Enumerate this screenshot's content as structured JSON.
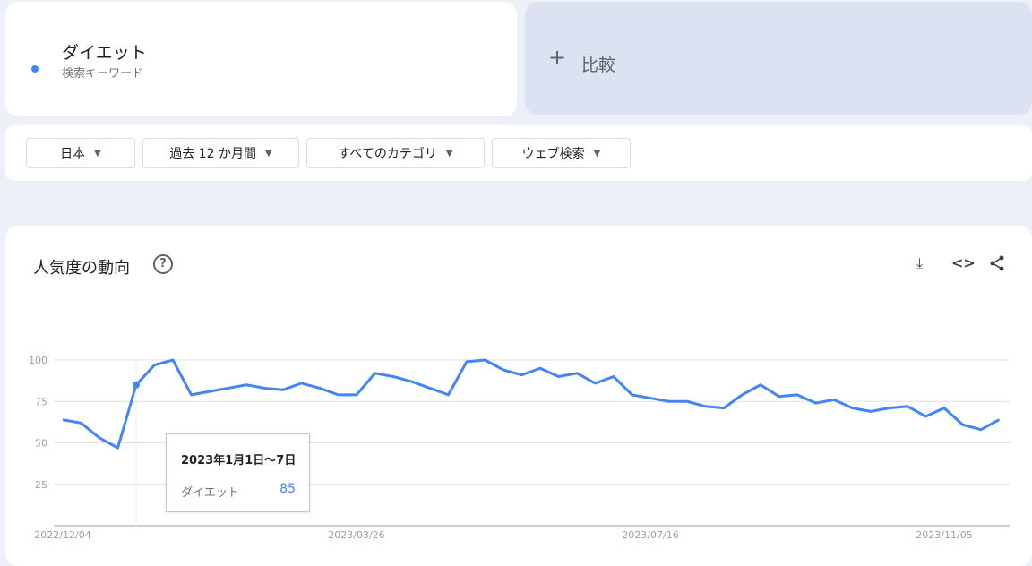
{
  "term": {
    "name": "ダイエット",
    "subtitle": "検索キーワード",
    "color": "#4285f4"
  },
  "compare": {
    "icon": "plus-icon",
    "label": "比較"
  },
  "filters": [
    {
      "label": "日本"
    },
    {
      "label": "過去 12 か月間"
    },
    {
      "label": "すべてのカテゴリ"
    },
    {
      "label": "ウェブ検索"
    }
  ],
  "chart_section": {
    "title": "人気度の動向",
    "help_icon": "help-circle-icon",
    "tools": [
      "download-icon",
      "embed-code-icon",
      "share-icon"
    ]
  },
  "tooltip": {
    "date": "2023年1月1日〜7日",
    "term": "ダイエット",
    "value": "85"
  },
  "chart_data": {
    "type": "line",
    "x_start": "2022/12/04",
    "x_interval": "weekly",
    "x_tick_labels": [
      "2022/12/04",
      "2023/03/26",
      "2023/07/16",
      "2023/11/05"
    ],
    "y_ticks": [
      "25",
      "50",
      "75",
      "100"
    ],
    "ylim": [
      0,
      100
    ],
    "grid": true,
    "highlighted_index": 4,
    "series": [
      {
        "name": "ダイエット",
        "color": "#4285f4",
        "values": [
          64,
          62,
          53,
          47,
          85,
          97,
          100,
          79,
          81,
          83,
          85,
          83,
          82,
          86,
          83,
          79,
          79,
          92,
          90,
          87,
          83,
          79,
          99,
          100,
          94,
          91,
          95,
          90,
          92,
          86,
          90,
          79,
          77,
          75,
          75,
          72,
          71,
          79,
          85,
          78,
          79,
          74,
          76,
          71,
          69,
          71,
          72,
          66,
          71,
          61,
          58,
          64
        ]
      }
    ]
  }
}
